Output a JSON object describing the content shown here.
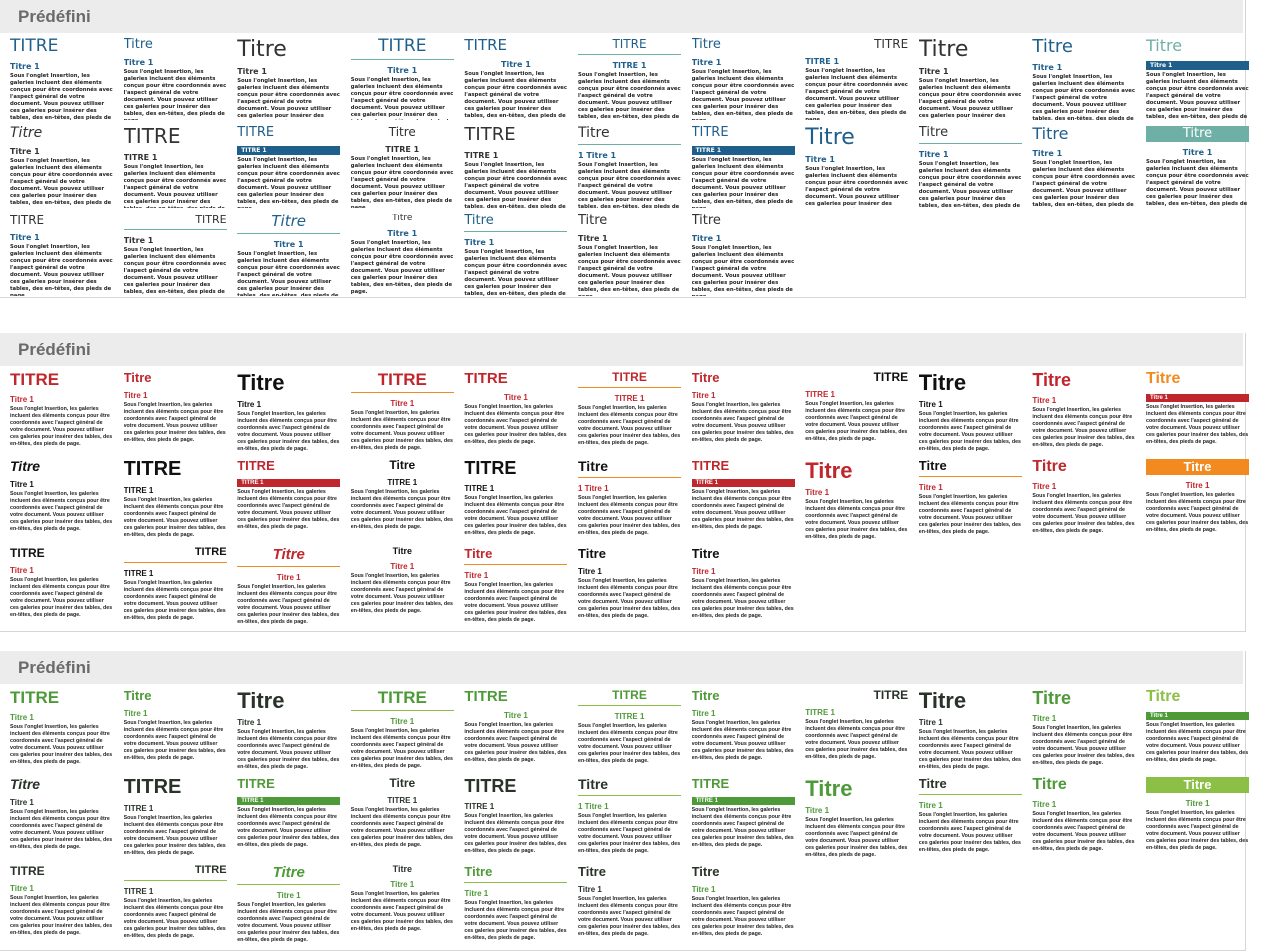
{
  "panels": [
    {
      "header": "Prédéfini",
      "colors": {
        "primary": "#1f5f8b",
        "secondary": "#6fb0a6",
        "text": "#333333"
      },
      "body": "Sous l'onglet Insertion, les galeries incluent des éléments conçus pour être coordonnés avec l'aspect général de votre document. Vous pouvez utiliser ces galeries pour insérer des tables, des en-têtes, des pieds de page.",
      "thumbnails": [
        {
          "title": "TITRE",
          "heading": "Titre 1"
        },
        {
          "title": "Titre",
          "heading": "Titre 1"
        },
        {
          "title": "Titre",
          "heading": "Titre 1"
        },
        {
          "title": "TITRE",
          "heading": "Titre 1"
        },
        {
          "title": "TITRE",
          "heading": "Titre 1"
        },
        {
          "title": "TITRE",
          "heading": "TITRE 1"
        },
        {
          "title": "Titre",
          "heading": "Titre 1"
        },
        {
          "title": "TITRE",
          "heading": "TITRE 1"
        },
        {
          "title": "Titre",
          "heading": "Titre 1"
        },
        {
          "title": "Titre",
          "heading": "Titre 1"
        },
        {
          "title": "Titre",
          "heading": "Titre 1"
        },
        {
          "title": "Titre",
          "heading": "Titre 1"
        },
        {
          "title": "TITRE",
          "heading": "TITRE 1"
        },
        {
          "title": "TITRE",
          "heading": "TITRE 1"
        },
        {
          "title": "Titre",
          "heading": "TITRE 1"
        },
        {
          "title": "TITRE",
          "heading": "TITRE 1"
        },
        {
          "title": "Titre",
          "heading": "1 Titre 1"
        },
        {
          "title": "TITRE",
          "heading": "TITRE 1"
        },
        {
          "title": "Titre",
          "heading": "Titre 1"
        },
        {
          "title": "Titre",
          "heading": "Titre 1"
        },
        {
          "title": "Titre",
          "heading": "Titre 1"
        },
        {
          "title": "Titre",
          "heading": "Titre 1"
        },
        {
          "title": "TITRE",
          "heading": "Titre 1"
        },
        {
          "title": "TITRE",
          "heading": "Titre 1"
        },
        {
          "title": "Titre",
          "heading": "Titre 1"
        },
        {
          "title": "Titre",
          "heading": "Titre 1"
        },
        {
          "title": "Titre",
          "heading": "Titre 1"
        },
        {
          "title": "Titre",
          "heading": "Titre 1"
        },
        {
          "title": "Titre",
          "heading": "Titre 1"
        }
      ]
    },
    {
      "header": "Prédéfini",
      "colors": {
        "primary": "#c0272d",
        "secondary": "#f28a1f",
        "text": "#111111"
      },
      "body": "Sous l'onglet Insertion, les galeries incluent des éléments conçus pour être coordonnés avec l'aspect général de votre document. Vous pouvez utiliser ces galeries pour insérer des tables, des en-têtes, des pieds de page.",
      "thumbnails": [
        {
          "title": "TITRE",
          "heading": "Titre 1"
        },
        {
          "title": "Titre",
          "heading": "Titre 1"
        },
        {
          "title": "Titre",
          "heading": "Titre 1"
        },
        {
          "title": "TITRE",
          "heading": "Titre 1"
        },
        {
          "title": "TITRE",
          "heading": "Titre 1"
        },
        {
          "title": "TITRE",
          "heading": "TITRE 1"
        },
        {
          "title": "Titre",
          "heading": "Titre 1"
        },
        {
          "title": "TITRE",
          "heading": "TITRE 1"
        },
        {
          "title": "Titre",
          "heading": "Titre 1"
        },
        {
          "title": "Titre",
          "heading": "Titre 1"
        },
        {
          "title": "Titre",
          "heading": "Titre 1"
        },
        {
          "title": "Titre",
          "heading": "Titre 1"
        },
        {
          "title": "TITRE",
          "heading": "TITRE 1"
        },
        {
          "title": "TITRE",
          "heading": "TITRE 1"
        },
        {
          "title": "Titre",
          "heading": "TITRE 1"
        },
        {
          "title": "TITRE",
          "heading": "TITRE 1"
        },
        {
          "title": "Titre",
          "heading": "1 Titre 1"
        },
        {
          "title": "TITRE",
          "heading": "TITRE 1"
        },
        {
          "title": "Titre",
          "heading": "Titre 1"
        },
        {
          "title": "Titre",
          "heading": "Titre 1"
        },
        {
          "title": "Titre",
          "heading": "Titre 1"
        },
        {
          "title": "Titre",
          "heading": "Titre 1"
        },
        {
          "title": "TITRE",
          "heading": "Titre 1"
        },
        {
          "title": "TITRE",
          "heading": "TITRE 1"
        },
        {
          "title": "Titre",
          "heading": "Titre 1"
        },
        {
          "title": "Titre",
          "heading": "Titre 1"
        },
        {
          "title": "Titre",
          "heading": "Titre 1"
        },
        {
          "title": "Titre",
          "heading": "Titre 1"
        },
        {
          "title": "Titre",
          "heading": "Titre 1"
        }
      ]
    },
    {
      "header": "Prédéfini",
      "colors": {
        "primary": "#4e9a38",
        "secondary": "#8cbf45",
        "text": "#2a332a"
      },
      "body": "Sous l'onglet Insertion, les galeries incluent des éléments conçus pour être coordonnés avec l'aspect général de votre document. Vous pouvez utiliser ces galeries pour insérer des tables, des en-têtes, des pieds de page.",
      "thumbnails": [
        {
          "title": "TITRE",
          "heading": "Titre 1"
        },
        {
          "title": "Titre",
          "heading": "Titre 1"
        },
        {
          "title": "Titre",
          "heading": "Titre 1"
        },
        {
          "title": "TITRE",
          "heading": "Titre 1"
        },
        {
          "title": "TITRE",
          "heading": "Titre 1"
        },
        {
          "title": "TITRE",
          "heading": "TITRE 1"
        },
        {
          "title": "Titre",
          "heading": "Titre 1"
        },
        {
          "title": "TITRE",
          "heading": "TITRE 1"
        },
        {
          "title": "Titre",
          "heading": "Titre 1"
        },
        {
          "title": "Titre",
          "heading": "Titre 1"
        },
        {
          "title": "Titre",
          "heading": "Titre 1"
        },
        {
          "title": "Titre",
          "heading": "Titre 1"
        },
        {
          "title": "TITRE",
          "heading": "TITRE 1"
        },
        {
          "title": "TITRE",
          "heading": "TITRE 1"
        },
        {
          "title": "Titre",
          "heading": "TITRE 1"
        },
        {
          "title": "TITRE",
          "heading": "TITRE 1"
        },
        {
          "title": "Titre",
          "heading": "1 Titre 1"
        },
        {
          "title": "TITRE",
          "heading": "TITRE 1"
        },
        {
          "title": "Titre",
          "heading": "Titre 1"
        },
        {
          "title": "Titre",
          "heading": "Titre 1"
        },
        {
          "title": "Titre",
          "heading": "Titre 1"
        },
        {
          "title": "Titre",
          "heading": "Titre 1"
        },
        {
          "title": "TITRE",
          "heading": "Titre 1"
        },
        {
          "title": "TITRE",
          "heading": "TITRE 1"
        },
        {
          "title": "Titre",
          "heading": "Titre 1"
        },
        {
          "title": "Titre",
          "heading": "Titre 1"
        },
        {
          "title": "Titre",
          "heading": "Titre 1"
        },
        {
          "title": "Titre",
          "heading": "Titre 1"
        },
        {
          "title": "Titre",
          "heading": "Titre 1"
        }
      ]
    }
  ]
}
